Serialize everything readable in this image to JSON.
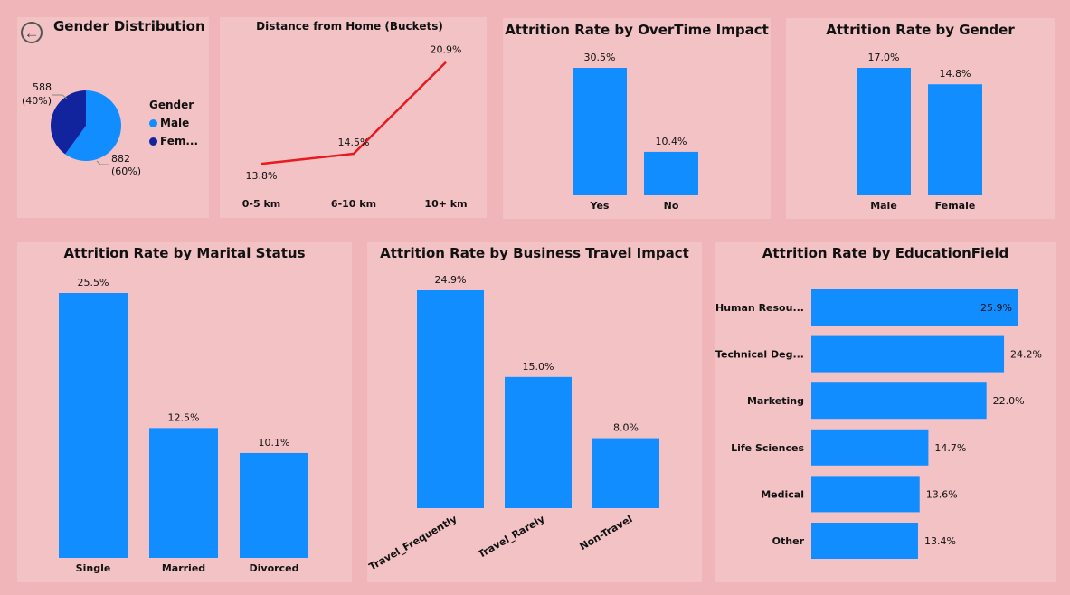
{
  "colors": {
    "bar": "#118dff",
    "line": "#e8191f",
    "male": "#118dff",
    "female": "#12239e",
    "panel": "#f2c2c4",
    "page": "#efb5b9"
  },
  "nav": {
    "back_icon": "arrow-left-circle-icon",
    "back_glyph": "←"
  },
  "gender_panel": {
    "title": "Gender Distribution",
    "legend_title": "Gender",
    "legend": [
      {
        "label": "Male",
        "color": "#118dff"
      },
      {
        "label": "Fem...",
        "color": "#12239e"
      }
    ],
    "labels": {
      "female_count": "588",
      "female_pct": "(40%)",
      "male_count": "882",
      "male_pct": "(60%)"
    }
  },
  "distance_panel": {
    "title": "Distance from Home (Buckets)"
  },
  "overtime_panel": {
    "title": "Attrition Rate by OverTime Impact"
  },
  "gender_rate_panel": {
    "title": "Attrition Rate by Gender"
  },
  "marital_panel": {
    "title": "Attrition Rate by Marital Status"
  },
  "travel_panel": {
    "title": "Attrition Rate by Business Travel Impact"
  },
  "education_panel": {
    "title": "Attrition Rate by EducationField"
  },
  "chart_data": [
    {
      "id": "gender_pie",
      "type": "pie",
      "title": "Gender Distribution",
      "categories": [
        "Male",
        "Female"
      ],
      "values": [
        882,
        588
      ],
      "percentages": [
        60,
        40
      ]
    },
    {
      "id": "distance",
      "type": "line",
      "title": "Distance from Home (Buckets)",
      "categories": [
        "0-5 km",
        "6-10 km",
        "10+ km"
      ],
      "values": [
        13.8,
        14.5,
        20.9
      ],
      "value_labels": [
        "13.8%",
        "14.5%",
        "20.9%"
      ],
      "ylim": [
        13.3,
        21.2
      ]
    },
    {
      "id": "overtime",
      "type": "bar",
      "title": "Attrition Rate by OverTime Impact",
      "categories": [
        "Yes",
        "No"
      ],
      "values": [
        30.5,
        10.4
      ],
      "value_labels": [
        "30.5%",
        "10.4%"
      ]
    },
    {
      "id": "gender_rate",
      "type": "bar",
      "title": "Attrition Rate by Gender",
      "categories": [
        "Male",
        "Female"
      ],
      "values": [
        17.0,
        14.8
      ],
      "value_labels": [
        "17.0%",
        "14.8%"
      ]
    },
    {
      "id": "marital",
      "type": "bar",
      "title": "Attrition Rate by Marital Status",
      "categories": [
        "Single",
        "Married",
        "Divorced"
      ],
      "values": [
        25.5,
        12.5,
        10.1
      ],
      "value_labels": [
        "25.5%",
        "12.5%",
        "10.1%"
      ]
    },
    {
      "id": "travel",
      "type": "bar",
      "title": "Attrition Rate by Business Travel Impact",
      "categories": [
        "Travel_Frequently",
        "Travel_Rarely",
        "Non-Travel"
      ],
      "values": [
        24.9,
        15.0,
        8.0
      ],
      "value_labels": [
        "24.9%",
        "15.0%",
        "8.0%"
      ]
    },
    {
      "id": "education",
      "type": "bar",
      "orientation": "horizontal",
      "title": "Attrition Rate by EducationField",
      "categories": [
        "Human Resou...",
        "Technical Deg...",
        "Marketing",
        "Life Sciences",
        "Medical",
        "Other"
      ],
      "values": [
        25.9,
        24.2,
        22.0,
        14.7,
        13.6,
        13.4
      ],
      "value_labels": [
        "25.9%",
        "24.2%",
        "22.0%",
        "14.7%",
        "13.6%",
        "13.4%"
      ]
    }
  ]
}
